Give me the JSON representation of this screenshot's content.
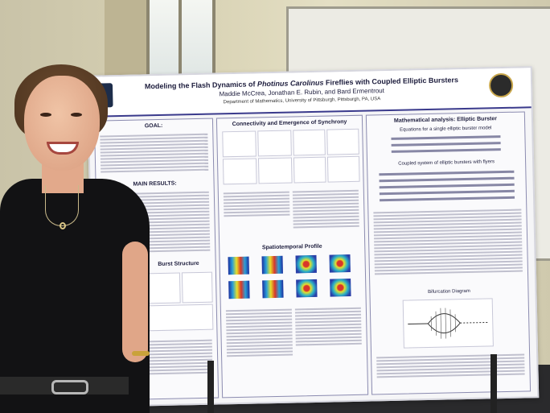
{
  "poster": {
    "title_prefix": "Modeling the Flash Dynamics of ",
    "title_italic": "Photinus Carolinus",
    "title_suffix": " Fireflies with Coupled Elliptic Bursters",
    "authors": "Maddie McCrea, Jonathan E. Rubin, and Bard Ermentrout",
    "department": "Department of Mathematics, University of Pittsburgh, Pittsburgh, PA, USA",
    "sections": {
      "goal": "GOAL:",
      "main_results": "MAIN RESULTS:",
      "burst_structure": "Burst Structure",
      "connectivity": "Connectivity and Emergence of Synchrony",
      "spatiotemporal": "Spatiotemporal Profile",
      "math_analysis": "Mathematical analysis: Elliptic Burster",
      "single_model": "Equations for a single elliptic burster model",
      "coupled_system": "Coupled system of elliptic bursters with flyers",
      "bifurcation": "Bifurcation Diagram"
    }
  },
  "colors": {
    "poster_border": "#3a3a8c",
    "poster_background": "#f5f5f7",
    "shirt": "#121214",
    "hair": "#5a3d24"
  }
}
